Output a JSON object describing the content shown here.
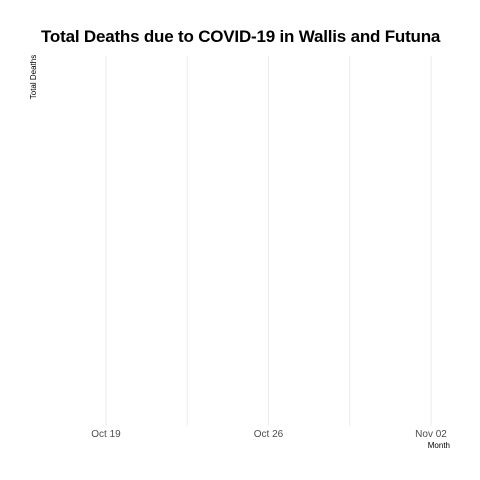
{
  "chart_data": {
    "type": "line",
    "title": "Total Deaths due to COVID-19 in Wallis and Futuna",
    "xlabel": "Month",
    "ylabel": "Total Deaths",
    "x_ticks": [
      "Oct 19",
      "Oct 26",
      "Nov 02"
    ],
    "x_tick_dates": [
      "2020-10-19",
      "2020-10-26",
      "2020-11-02"
    ],
    "x_minor_dates": [
      "2020-10-22T12:00",
      "2020-10-29T12:00"
    ],
    "xlim": [
      "2020-10-15",
      "2020-11-02"
    ],
    "series": [],
    "grid": true,
    "grid_color": "#ebebeb",
    "background": "#ffffff"
  }
}
